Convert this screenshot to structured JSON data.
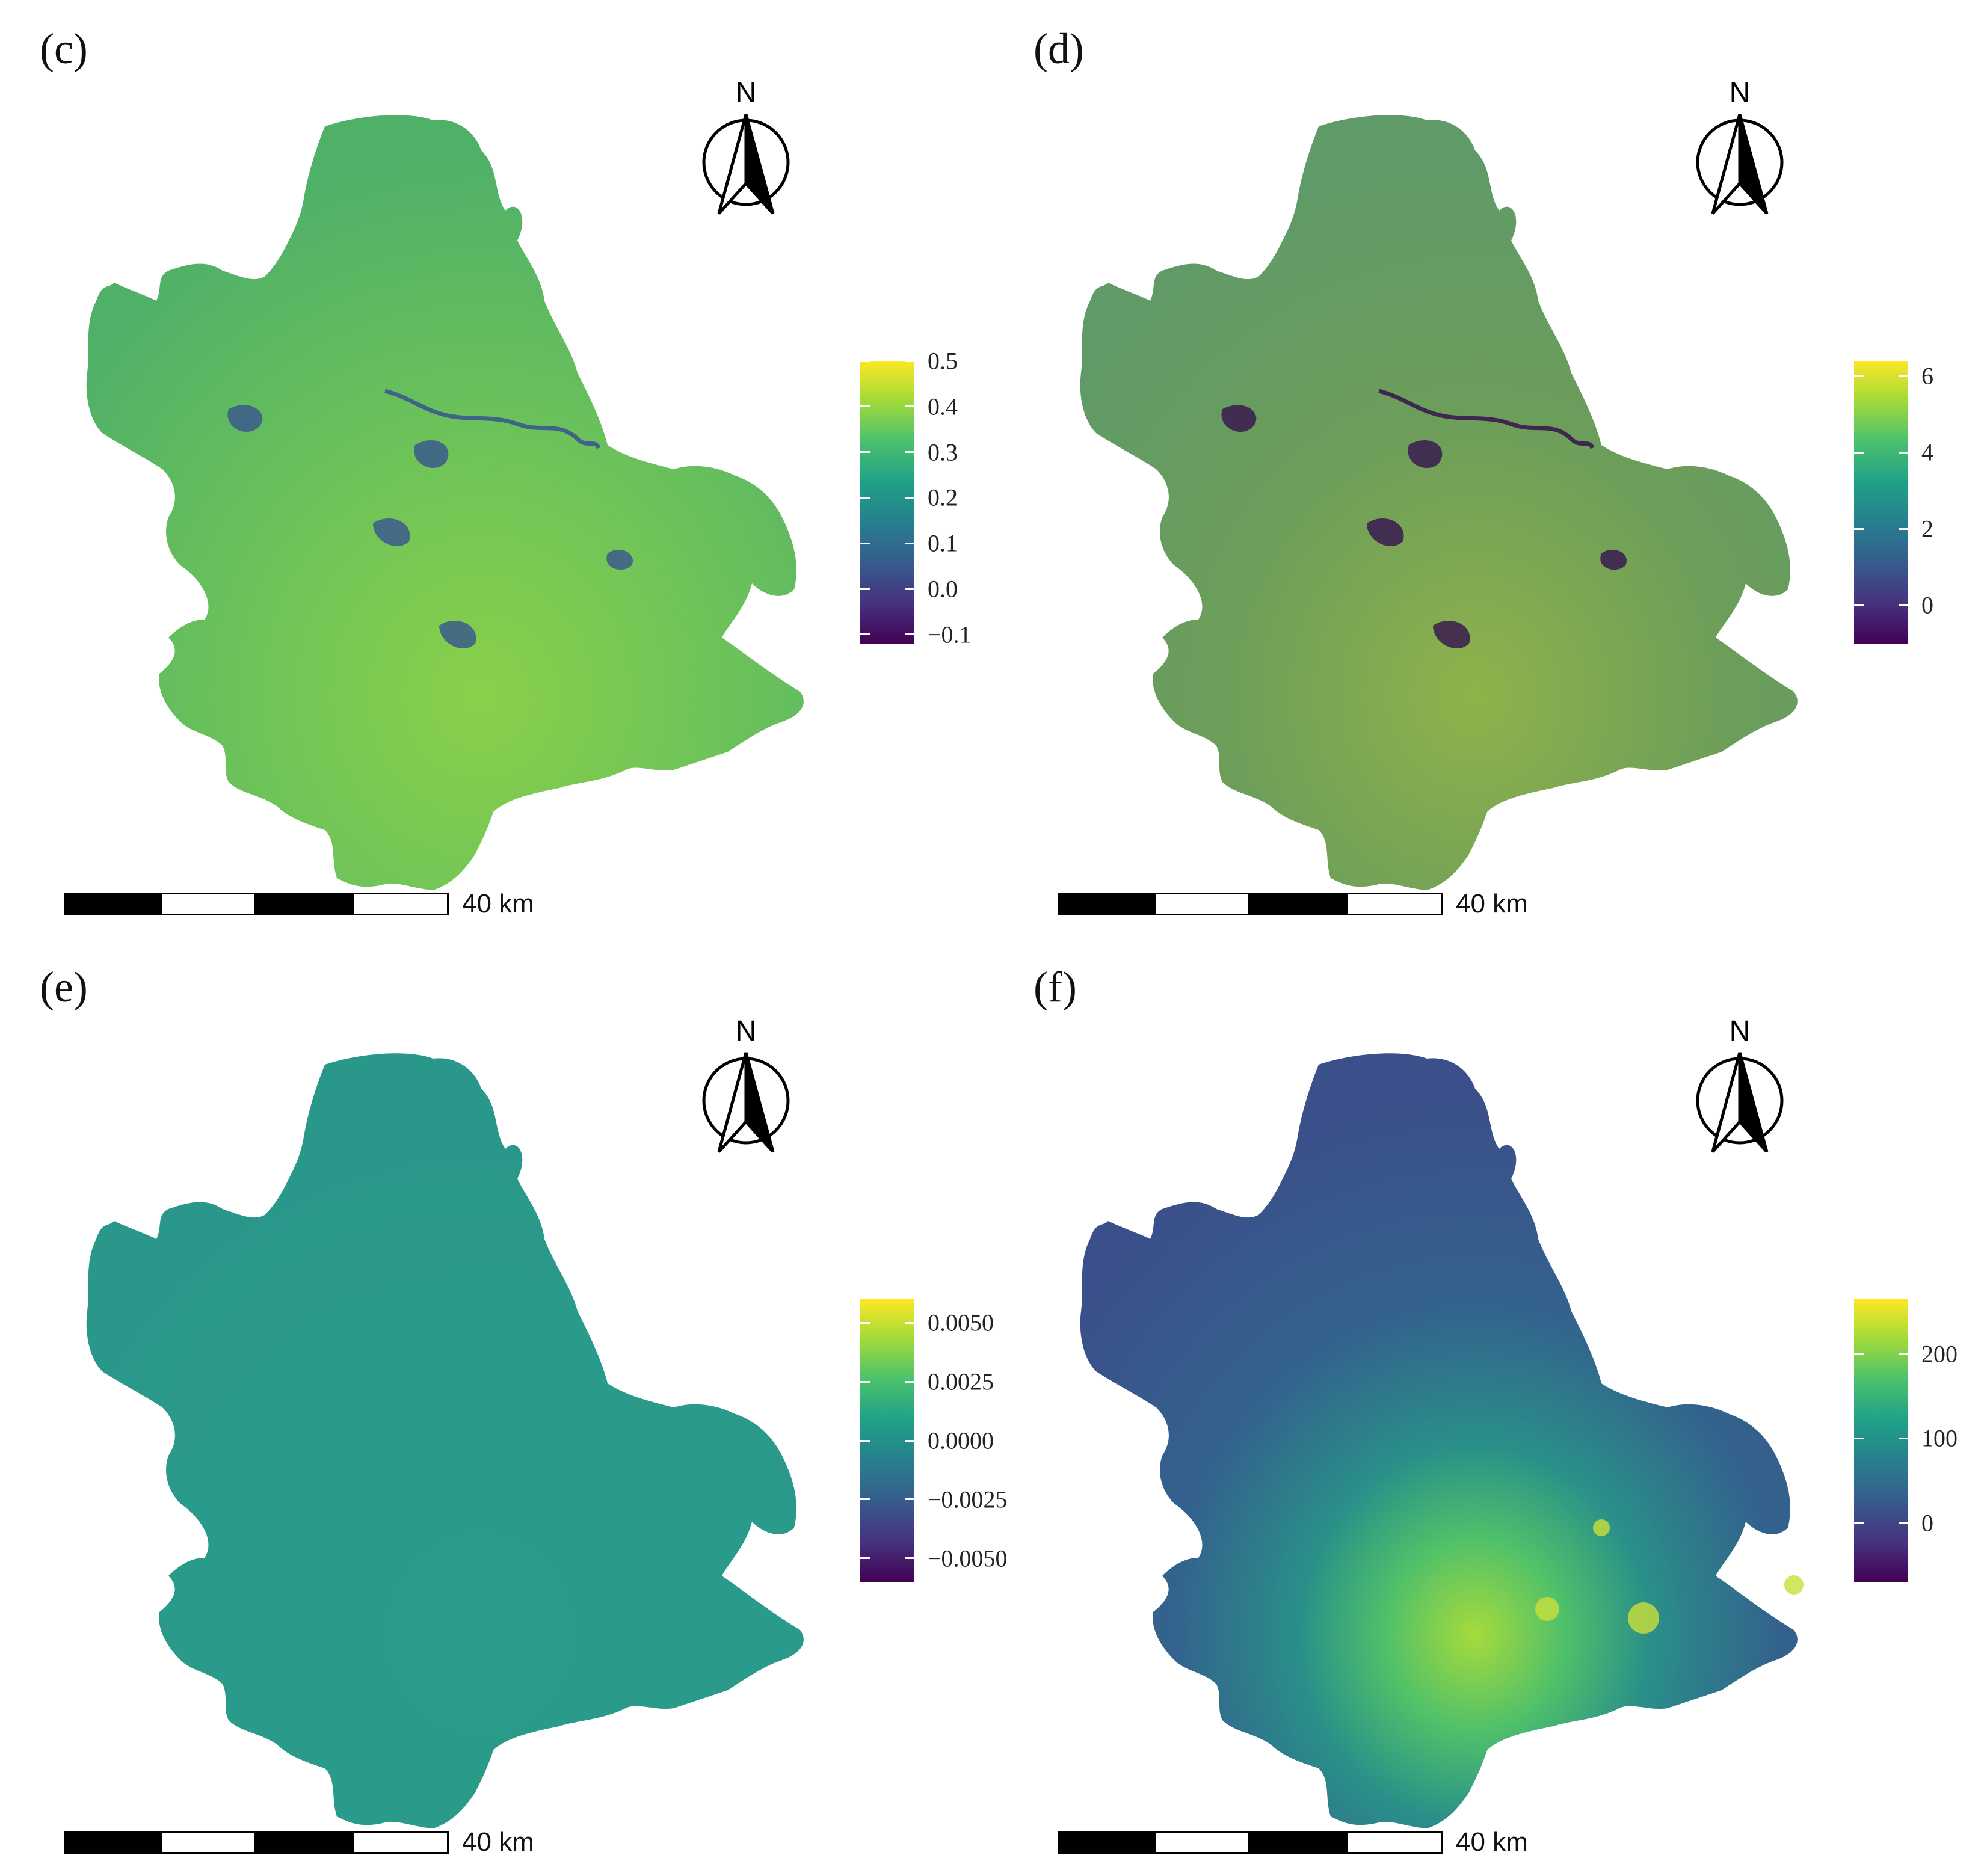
{
  "north_arrow": {
    "label": "N",
    "icon": "north-arrow-icon"
  },
  "scale_bar": {
    "label": "40 km"
  },
  "shared_colormap": {
    "name": "viridis",
    "colors": [
      "#440154",
      "#46327e",
      "#365c8d",
      "#277f8e",
      "#1fa187",
      "#4ac16d",
      "#a0da39",
      "#fde725"
    ]
  },
  "panels": [
    {
      "id": "c",
      "label": "(c)",
      "fill": "#6cc25a",
      "water_color": "#3b5a8c",
      "legend": {
        "min": -0.12,
        "max": 0.5,
        "ticks": [
          "0.5",
          "0.4",
          "0.3",
          "0.2",
          "0.1",
          "0.0",
          "−0.1"
        ],
        "tick_values": [
          0.5,
          0.4,
          0.3,
          0.2,
          0.1,
          0.0,
          -0.1
        ]
      }
    },
    {
      "id": "d",
      "label": "(d)",
      "fill": "#7ca84a",
      "water_color": "#3a1a4f",
      "legend": {
        "min": -1,
        "max": 6.4,
        "ticks": [
          "6",
          "4",
          "2",
          "0"
        ],
        "tick_values": [
          6,
          4,
          2,
          0
        ]
      }
    },
    {
      "id": "e",
      "label": "(e)",
      "fill": "#2a9d8a",
      "water_color": "#2a9d8a",
      "legend": {
        "min": -0.006,
        "max": 0.006,
        "ticks": [
          "0.0050",
          "0.0025",
          "0.0000",
          "−0.0025",
          "−0.0050"
        ],
        "tick_values": [
          0.005,
          0.0025,
          0.0,
          -0.0025,
          -0.005
        ]
      }
    },
    {
      "id": "f",
      "label": "(f)",
      "fill": "#3a5f8e",
      "water_color": "#3a5f8e",
      "legend": {
        "min": -70,
        "max": 265,
        "ticks": [
          "200",
          "100",
          "0"
        ],
        "tick_values": [
          200,
          100,
          0
        ]
      }
    }
  ]
}
